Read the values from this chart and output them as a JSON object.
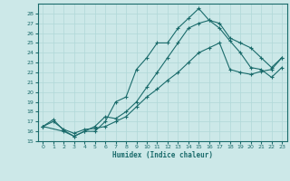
{
  "xlabel": "Humidex (Indice chaleur)",
  "bg_color": "#cce8e8",
  "line_color": "#1a6b6b",
  "grid_color": "#b0d8d8",
  "xlim": [
    -0.5,
    23.5
  ],
  "ylim": [
    15,
    29
  ],
  "xticks": [
    0,
    1,
    2,
    3,
    4,
    5,
    6,
    7,
    8,
    9,
    10,
    11,
    12,
    13,
    14,
    15,
    16,
    17,
    18,
    19,
    20,
    21,
    22,
    23
  ],
  "yticks": [
    15,
    16,
    17,
    18,
    19,
    20,
    21,
    22,
    23,
    24,
    25,
    26,
    27,
    28
  ],
  "line1_x": [
    0,
    1,
    2,
    3,
    4,
    5,
    6,
    7,
    8,
    9,
    10,
    11,
    12,
    13,
    14,
    15,
    16,
    17,
    18,
    19,
    20,
    21,
    22,
    23
  ],
  "line1_y": [
    16.5,
    17.2,
    16.1,
    15.5,
    16.0,
    16.0,
    17.0,
    19.0,
    19.5,
    22.3,
    23.5,
    25.0,
    25.0,
    26.5,
    27.5,
    28.5,
    27.3,
    27.0,
    25.5,
    25.0,
    24.5,
    23.5,
    22.5,
    23.5
  ],
  "line2_x": [
    0,
    2,
    3,
    4,
    5,
    6,
    7,
    8,
    9,
    10,
    11,
    12,
    13,
    14,
    15,
    16,
    17,
    18,
    19,
    20,
    21,
    22,
    23
  ],
  "line2_y": [
    16.5,
    16.0,
    15.5,
    16.0,
    16.5,
    17.5,
    17.3,
    18.0,
    19.0,
    20.5,
    22.0,
    23.5,
    25.0,
    26.5,
    27.0,
    27.3,
    26.5,
    25.2,
    24.0,
    22.5,
    22.3,
    21.5,
    22.5
  ],
  "line3_x": [
    0,
    1,
    2,
    3,
    4,
    5,
    6,
    7,
    8,
    9,
    10,
    11,
    12,
    13,
    14,
    15,
    16,
    17,
    18,
    19,
    20,
    21,
    22,
    23
  ],
  "line3_y": [
    16.5,
    17.0,
    16.2,
    15.8,
    16.2,
    16.3,
    16.5,
    17.0,
    17.5,
    18.5,
    19.5,
    20.3,
    21.2,
    22.0,
    23.0,
    24.0,
    24.5,
    25.0,
    22.3,
    22.0,
    21.8,
    22.1,
    22.3,
    23.5
  ]
}
